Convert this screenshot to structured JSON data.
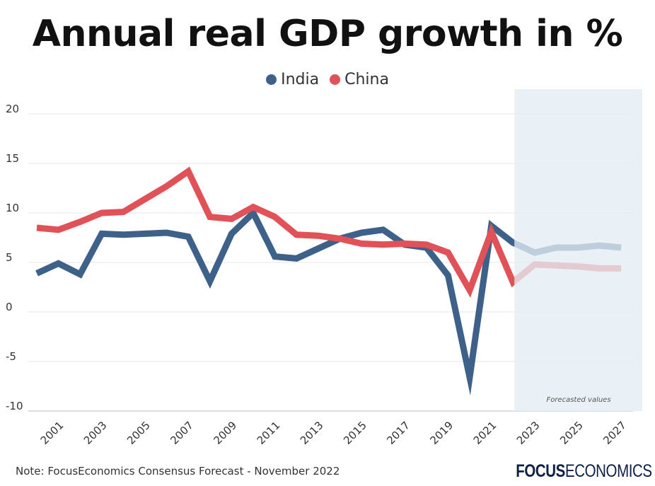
{
  "chart_data": {
    "type": "line",
    "title": "Annual real GDP growth in %",
    "x": [
      2000,
      2001,
      2002,
      2003,
      2004,
      2005,
      2006,
      2007,
      2008,
      2009,
      2010,
      2011,
      2012,
      2013,
      2014,
      2015,
      2016,
      2017,
      2018,
      2019,
      2020,
      2021,
      2022,
      2023,
      2024,
      2025,
      2026,
      2027
    ],
    "series": [
      {
        "name": "India",
        "color": "#3d6189",
        "values": [
          3.9,
          4.9,
          3.8,
          7.9,
          7.8,
          7.9,
          8.0,
          7.6,
          3.1,
          7.9,
          10.0,
          5.6,
          5.4,
          6.4,
          7.4,
          8.0,
          8.3,
          6.8,
          6.5,
          3.7,
          -6.6,
          8.7,
          7.0,
          6.0,
          6.5,
          6.5,
          6.7,
          6.5
        ]
      },
      {
        "name": "China",
        "color": "#e05258",
        "values": [
          8.5,
          8.3,
          9.1,
          10.0,
          10.1,
          11.4,
          12.7,
          14.2,
          9.6,
          9.4,
          10.6,
          9.6,
          7.8,
          7.7,
          7.4,
          6.9,
          6.8,
          6.9,
          6.8,
          6.0,
          2.2,
          8.1,
          3.0,
          4.8,
          4.7,
          4.6,
          4.4,
          4.4
        ]
      }
    ],
    "ylim": [
      -10,
      20
    ],
    "yticks": [
      "20",
      "15",
      "10",
      "5",
      "0",
      "-5",
      "-10"
    ],
    "xticks": [
      "2001",
      "2003",
      "2005",
      "2007",
      "2009",
      "2011",
      "2013",
      "2015",
      "2017",
      "2019",
      "2021",
      "2023",
      "2025",
      "2027"
    ],
    "forecast_from": 2022,
    "forecast_label": "Forecasted values",
    "forecast_color": "#e4edf3",
    "grid": true,
    "legend_placement": "top-center"
  },
  "footer": {
    "note": "Note: FocusEconomics Consensus Forecast - November 2022",
    "logo_bold": "FOCUS",
    "logo_light": "ECONOMICS"
  }
}
